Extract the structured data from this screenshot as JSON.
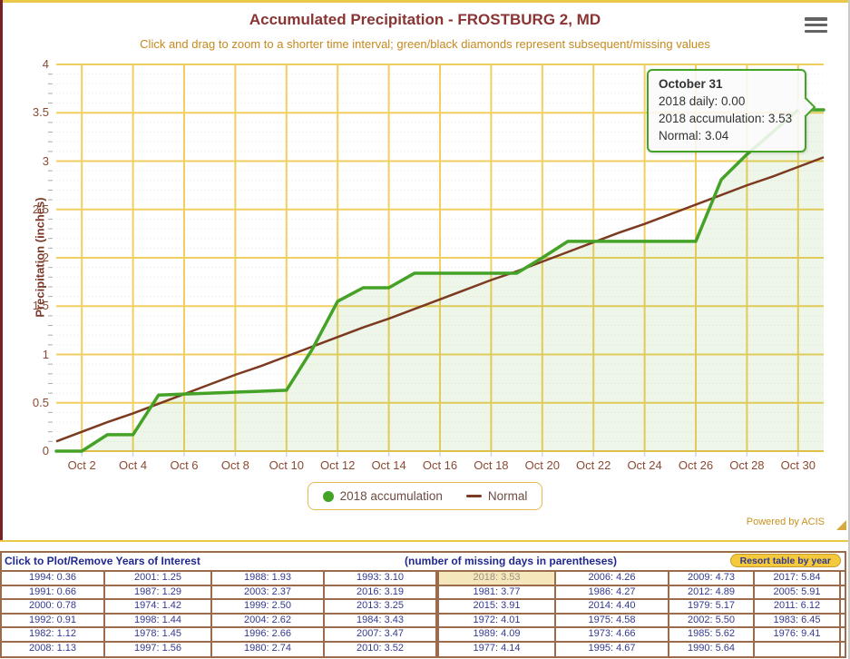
{
  "page": {
    "title": "Accumulated Precipitation - FROSTBURG 2, MD",
    "subtitle": "Click and drag to zoom to a shorter time interval; green/black diamonds represent subsequent/missing values",
    "powered_by": "Powered by ACIS"
  },
  "colors": {
    "title": "#8B3434",
    "subtitle": "#C6891D",
    "grid_major": "#F0CF60",
    "axis_labels": "#8B4A33",
    "accumulation_line": "#44A227",
    "accumulation_fill": "rgba(76,163,42,0.10)",
    "normal_line": "#7C3A21",
    "tooltip_border": "#44A227",
    "legend_border": "#E2BB55",
    "table_border": "#9B6B4B",
    "table_text": "#333A8E",
    "highlight_bg": "#F6E6BB",
    "button_bg": "#F5C93C"
  },
  "chart_data": {
    "type": "line",
    "ylabel": "Precipitation (inches)",
    "ylim": [
      0,
      4
    ],
    "y_ticks": [
      0,
      0.5,
      1,
      1.5,
      2,
      2.5,
      3,
      3.5,
      4
    ],
    "y_tick_labels": [
      "0",
      "0.5",
      "1",
      "1.5",
      "2",
      "2.5",
      "3",
      "3.5",
      "4"
    ],
    "x_days": [
      1,
      2,
      3,
      4,
      5,
      6,
      7,
      8,
      9,
      10,
      11,
      12,
      13,
      14,
      15,
      16,
      17,
      18,
      19,
      20,
      21,
      22,
      23,
      24,
      25,
      26,
      27,
      28,
      29,
      30,
      31
    ],
    "x_tick_days": [
      2,
      4,
      6,
      8,
      10,
      12,
      14,
      16,
      18,
      20,
      22,
      24,
      26,
      28,
      30
    ],
    "x_tick_labels": [
      "Oct 2",
      "Oct 4",
      "Oct 6",
      "Oct 8",
      "Oct 10",
      "Oct 12",
      "Oct 14",
      "Oct 16",
      "Oct 18",
      "Oct 20",
      "Oct 22",
      "Oct 24",
      "Oct 26",
      "Oct 28",
      "Oct 30"
    ],
    "grid": true,
    "legend_position": "bottom",
    "series": [
      {
        "name": "2018 accumulation",
        "color": "#44A227",
        "fill": "rgba(76,163,42,0.10)",
        "values": [
          0.0,
          0.0,
          0.17,
          0.17,
          0.58,
          0.59,
          0.6,
          0.61,
          0.62,
          0.63,
          1.05,
          1.55,
          1.69,
          1.69,
          1.84,
          1.84,
          1.84,
          1.84,
          1.84,
          2.0,
          2.17,
          2.17,
          2.17,
          2.17,
          2.17,
          2.17,
          2.81,
          3.07,
          3.3,
          3.53,
          3.53
        ]
      },
      {
        "name": "Normal",
        "color": "#7C3A21",
        "values": [
          0.1,
          0.2,
          0.3,
          0.39,
          0.49,
          0.59,
          0.69,
          0.79,
          0.88,
          0.98,
          1.08,
          1.18,
          1.28,
          1.37,
          1.47,
          1.57,
          1.67,
          1.77,
          1.86,
          1.96,
          2.06,
          2.16,
          2.26,
          2.35,
          2.45,
          2.55,
          2.65,
          2.75,
          2.84,
          2.94,
          3.04
        ]
      }
    ]
  },
  "tooltip": {
    "title": "October 31",
    "lines": [
      "2018 daily: 0.00",
      "2018 accumulation: 3.53",
      "Normal: 3.04"
    ]
  },
  "legend": {
    "items": [
      {
        "label": "2018 accumulation",
        "marker": "green-circle"
      },
      {
        "label": "Normal",
        "marker": "brown-dash"
      }
    ]
  },
  "table": {
    "header_left": "Click to Plot/Remove Years of Interest",
    "header_center": "(number of missing days in parentheses)",
    "button_label": "Resort table by year",
    "highlight": {
      "row": 0,
      "col": 4
    },
    "rows": [
      [
        "1994: 0.36",
        "2001: 1.25",
        "1988: 1.93",
        "1993: 3.10",
        "2018: 3.53",
        "2006: 4.26",
        "2009: 4.73",
        "2017: 5.84"
      ],
      [
        "1991: 0.66",
        "1987: 1.29",
        "2003: 2.37",
        "2016: 3.19",
        "1981: 3.77",
        "1986: 4.27",
        "2012: 4.89",
        "2005: 5.91"
      ],
      [
        "2000: 0.78",
        "1974: 1.42",
        "1999: 2.50",
        "2013: 3.25",
        "2015: 3.91",
        "2014: 4.40",
        "1979: 5.17",
        "2011: 6.12"
      ],
      [
        "1992: 0.91",
        "1998: 1.44",
        "2004: 2.62",
        "1984: 3.43",
        "1972: 4.01",
        "1975: 4.58",
        "2002: 5.50",
        "1983: 6.45"
      ],
      [
        "1982: 1.12",
        "1978: 1.45",
        "1996: 2.66",
        "2007: 3.47",
        "1989: 4.09",
        "1973: 4.66",
        "1985: 5.62",
        "1976: 9.41"
      ],
      [
        "2008: 1.13",
        "1997: 1.56",
        "1980: 2.74",
        "2010: 3.52",
        "1977: 4.14",
        "1995: 4.67",
        "1990: 5.64",
        ""
      ]
    ]
  }
}
